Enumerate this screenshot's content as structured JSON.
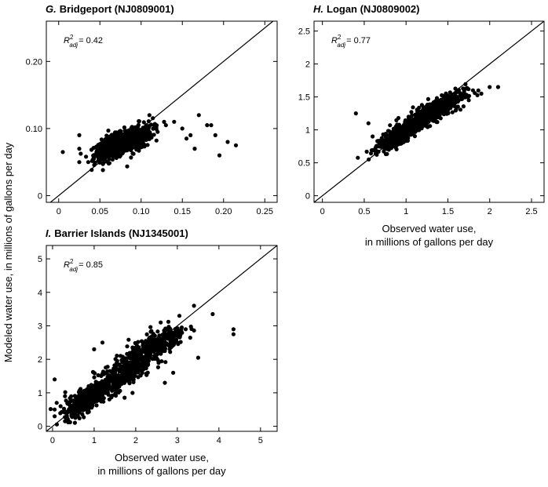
{
  "figure": {
    "ylabel": "Modeled water use, in millions of gallons per day",
    "xlabel_line1": "Observed water use,",
    "xlabel_line2": "in millions of gallons per day"
  },
  "chart_data": [
    {
      "type": "scatter",
      "letter": "G.",
      "title": "Bridgeport (NJ0809001)",
      "r2_label": "R",
      "r2_sup": "2",
      "r2_sub": "adj",
      "r2_value": "= 0.42",
      "xlim": [
        -0.015,
        0.265
      ],
      "ylim": [
        -0.01,
        0.26
      ],
      "xticks": [
        0,
        0.05,
        0.1,
        0.15,
        0.2,
        0.25
      ],
      "xtick_labels": [
        "0",
        "0.05",
        "0.10",
        "0.15",
        "0.20",
        "0.25"
      ],
      "yticks": [
        0,
        0.1,
        0.2
      ],
      "ytick_labels": [
        "0",
        "0.10",
        "0.20"
      ],
      "show_xlabel": false,
      "identity_line": true,
      "clusters": [
        {
          "mx": 0.065,
          "my": 0.072,
          "sx": 0.011,
          "sy": 0.01,
          "n": 450,
          "rho": 0.55
        },
        {
          "mx": 0.09,
          "my": 0.085,
          "sx": 0.012,
          "sy": 0.011,
          "n": 350,
          "rho": 0.5
        }
      ],
      "extra_points": [
        [
          0.005,
          0.065
        ],
        [
          0.025,
          0.05
        ],
        [
          0.025,
          0.09
        ],
        [
          0.025,
          0.07
        ],
        [
          0.14,
          0.11
        ],
        [
          0.15,
          0.1
        ],
        [
          0.16,
          0.09
        ],
        [
          0.165,
          0.07
        ],
        [
          0.17,
          0.12
        ],
        [
          0.18,
          0.105
        ],
        [
          0.185,
          0.105
        ],
        [
          0.19,
          0.09
        ],
        [
          0.195,
          0.06
        ],
        [
          0.205,
          0.08
        ],
        [
          0.215,
          0.075
        ],
        [
          0.13,
          0.105
        ],
        [
          0.12,
          0.095
        ],
        [
          0.11,
          0.12
        ],
        [
          0.155,
          0.085
        ]
      ]
    },
    {
      "type": "scatter",
      "letter": "H.",
      "title": "Logan (NJ0809002)",
      "r2_label": "R",
      "r2_sup": "2",
      "r2_sub": "adj",
      "r2_value": "= 0.77",
      "xlim": [
        -0.1,
        2.65
      ],
      "ylim": [
        -0.1,
        2.65
      ],
      "xticks": [
        0,
        0.5,
        1,
        1.5,
        2,
        2.5
      ],
      "xtick_labels": [
        "0",
        "0.5",
        "1",
        "1.5",
        "2",
        "2.5"
      ],
      "yticks": [
        0,
        0.5,
        1,
        1.5,
        2,
        2.5
      ],
      "ytick_labels": [
        "0",
        "0.5",
        "1",
        "1.5",
        "2",
        "2.5"
      ],
      "show_xlabel": true,
      "identity_line": true,
      "clusters": [
        {
          "mx": 0.95,
          "my": 0.95,
          "sx": 0.14,
          "sy": 0.12,
          "n": 550,
          "rho": 0.85
        },
        {
          "mx": 1.35,
          "my": 1.3,
          "sx": 0.18,
          "sy": 0.14,
          "n": 400,
          "rho": 0.8
        }
      ],
      "extra_points": [
        [
          0.4,
          1.25
        ],
        [
          0.55,
          1.1
        ],
        [
          0.6,
          0.9
        ],
        [
          1.8,
          1.6
        ],
        [
          1.9,
          1.55
        ],
        [
          2.0,
          1.65
        ],
        [
          2.1,
          1.65
        ],
        [
          1.75,
          1.45
        ],
        [
          0.65,
          0.75
        ]
      ]
    },
    {
      "type": "scatter",
      "letter": "I.",
      "title": "Barrier Islands (NJ1345001)",
      "r2_label": "R",
      "r2_sup": "2",
      "r2_sub": "adj",
      "r2_value": "= 0.85",
      "xlim": [
        -0.15,
        5.4
      ],
      "ylim": [
        -0.15,
        5.4
      ],
      "xticks": [
        0,
        1,
        2,
        3,
        4,
        5
      ],
      "xtick_labels": [
        "0",
        "1",
        "2",
        "3",
        "4",
        "5"
      ],
      "yticks": [
        0,
        1,
        2,
        3,
        4,
        5
      ],
      "ytick_labels": [
        "0",
        "1",
        "2",
        "3",
        "4",
        "5"
      ],
      "show_xlabel": true,
      "identity_line": true,
      "clusters": [
        {
          "mx": 0.8,
          "my": 0.8,
          "sx": 0.25,
          "sy": 0.25,
          "n": 500,
          "rho": 0.75
        },
        {
          "mx": 1.7,
          "my": 1.6,
          "sx": 0.35,
          "sy": 0.35,
          "n": 350,
          "rho": 0.7
        },
        {
          "mx": 2.5,
          "my": 2.4,
          "sx": 0.35,
          "sy": 0.3,
          "n": 300,
          "rho": 0.75
        }
      ],
      "extra_points": [
        [
          0.05,
          1.4
        ],
        [
          0.05,
          0.5
        ],
        [
          0.05,
          0.3
        ],
        [
          0.1,
          0.7
        ],
        [
          0.3,
          0.9
        ],
        [
          4.35,
          2.9
        ],
        [
          4.35,
          2.75
        ],
        [
          3.85,
          3.35
        ],
        [
          3.4,
          3.6
        ],
        [
          3.2,
          2.9
        ],
        [
          3.0,
          2.8
        ],
        [
          2.9,
          1.6
        ],
        [
          3.5,
          2.05
        ],
        [
          2.7,
          1.3
        ],
        [
          1.2,
          2.5
        ],
        [
          1.0,
          2.3
        ],
        [
          2.6,
          3.1
        ],
        [
          3.05,
          3.3
        ]
      ]
    }
  ]
}
